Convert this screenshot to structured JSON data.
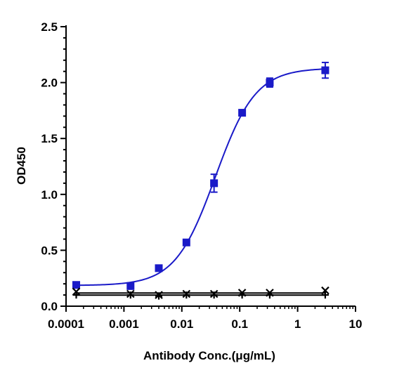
{
  "chart_data": {
    "type": "scatter",
    "title": "",
    "xlabel": "Antibody Conc.(μg/mL)",
    "ylabel": "OD450",
    "x_scale": "log",
    "xlim": [
      0.0001,
      10
    ],
    "ylim": [
      0,
      2.5
    ],
    "x_ticks": [
      "0.0001",
      "0.001",
      "0.01",
      "0.1",
      "1",
      "10"
    ],
    "y_ticks": [
      "0.0",
      "0.5",
      "1.0",
      "1.5",
      "2.0",
      "2.5"
    ],
    "grid": false,
    "legend": "none",
    "series": [
      {
        "marker": "square",
        "color": "#1a1ac8",
        "fit": "4PL sigmoid",
        "x": [
          0.00015,
          0.0013,
          0.004,
          0.012,
          0.036,
          0.11,
          0.33,
          3.0
        ],
        "y": [
          0.19,
          0.18,
          0.34,
          0.57,
          1.1,
          1.73,
          2.0,
          2.11
        ],
        "error": [
          0.01,
          0.02,
          0.01,
          0.01,
          0.08,
          0.02,
          0.04,
          0.07
        ]
      },
      {
        "marker": "x",
        "color": "#000000",
        "fit": "flat line",
        "x": [
          0.00015,
          0.0013,
          0.004,
          0.012,
          0.036,
          0.11,
          0.33,
          3.0
        ],
        "y": [
          0.13,
          0.11,
          0.1,
          0.11,
          0.11,
          0.12,
          0.12,
          0.14
        ],
        "error": [
          0,
          0,
          0,
          0,
          0,
          0,
          0,
          0
        ]
      },
      {
        "marker": "plus",
        "color": "#000000",
        "fit": "flat line",
        "x": [
          0.00015,
          0.0013,
          0.004,
          0.012,
          0.036,
          0.11,
          0.33,
          3.0
        ],
        "y": [
          0.1,
          0.1,
          0.09,
          0.1,
          0.1,
          0.1,
          0.1,
          0.1
        ],
        "error": [
          0,
          0,
          0,
          0,
          0,
          0,
          0,
          0
        ]
      }
    ]
  }
}
